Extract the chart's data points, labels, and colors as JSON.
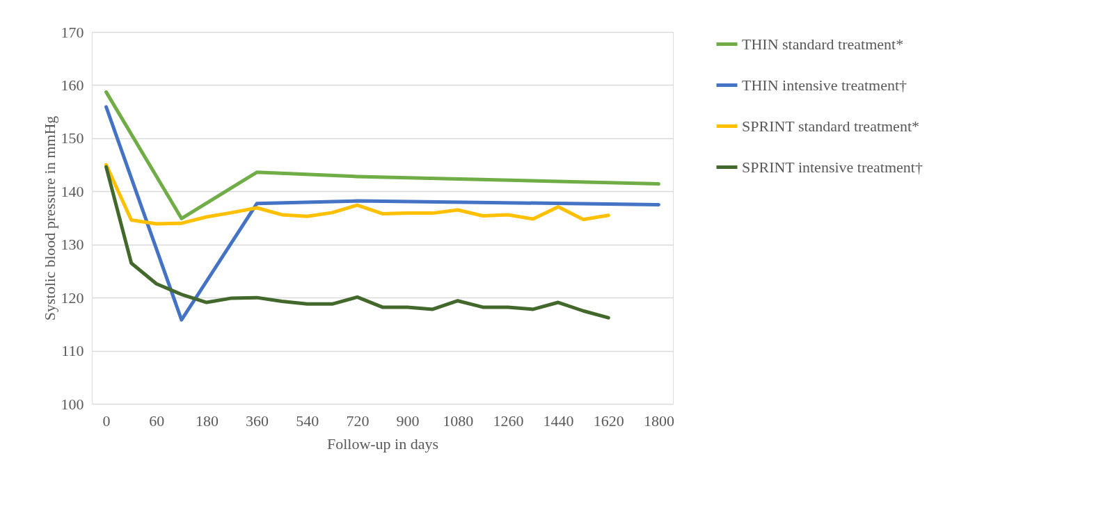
{
  "chart_data": {
    "type": "line",
    "xlabel": "Follow-up in days",
    "ylabel": "Systolic blood pressure in mmHg",
    "categories": [
      "0",
      null,
      "60",
      null,
      "180",
      null,
      "360",
      null,
      "540",
      null,
      "720",
      null,
      "900",
      null,
      "1080",
      null,
      "1260",
      null,
      "1440",
      null,
      "1620",
      null,
      "1800"
    ],
    "ylim": [
      100,
      170
    ],
    "yticks": [
      100,
      110,
      120,
      130,
      140,
      150,
      160,
      170
    ],
    "grid": "y",
    "legend": "right",
    "marker": "none",
    "line_style": "solid",
    "series": [
      {
        "name": "THIN standard treatment*",
        "color": "#70ad47",
        "values": [
          158.7,
          null,
          null,
          134.9,
          null,
          null,
          143.6,
          null,
          null,
          null,
          142.8,
          null,
          null,
          null,
          null,
          null,
          null,
          null,
          null,
          null,
          null,
          null,
          141.4
        ]
      },
      {
        "name": "THIN intensive treatment†",
        "color": "#4472c4",
        "values": [
          155.9,
          null,
          null,
          115.8,
          null,
          null,
          137.7,
          null,
          null,
          null,
          138.2,
          null,
          null,
          null,
          null,
          null,
          null,
          null,
          null,
          null,
          null,
          null,
          137.5
        ]
      },
      {
        "name": "SPRINT standard treatment*",
        "color": "#ffc000",
        "values": [
          145.0,
          134.6,
          133.9,
          134.0,
          135.2,
          136.0,
          136.9,
          135.6,
          135.3,
          136.0,
          137.4,
          135.8,
          135.9,
          135.9,
          136.5,
          135.4,
          135.6,
          134.8,
          137.1,
          134.7,
          135.5,
          null,
          null
        ]
      },
      {
        "name": "SPRINT intensive treatment†",
        "color": "#43682b",
        "values": [
          144.6,
          126.5,
          122.6,
          120.6,
          119.1,
          119.9,
          120.0,
          119.3,
          118.8,
          118.8,
          120.1,
          118.2,
          118.2,
          117.8,
          119.4,
          118.2,
          118.2,
          117.8,
          119.1,
          117.5,
          116.2,
          null,
          null
        ]
      }
    ]
  }
}
